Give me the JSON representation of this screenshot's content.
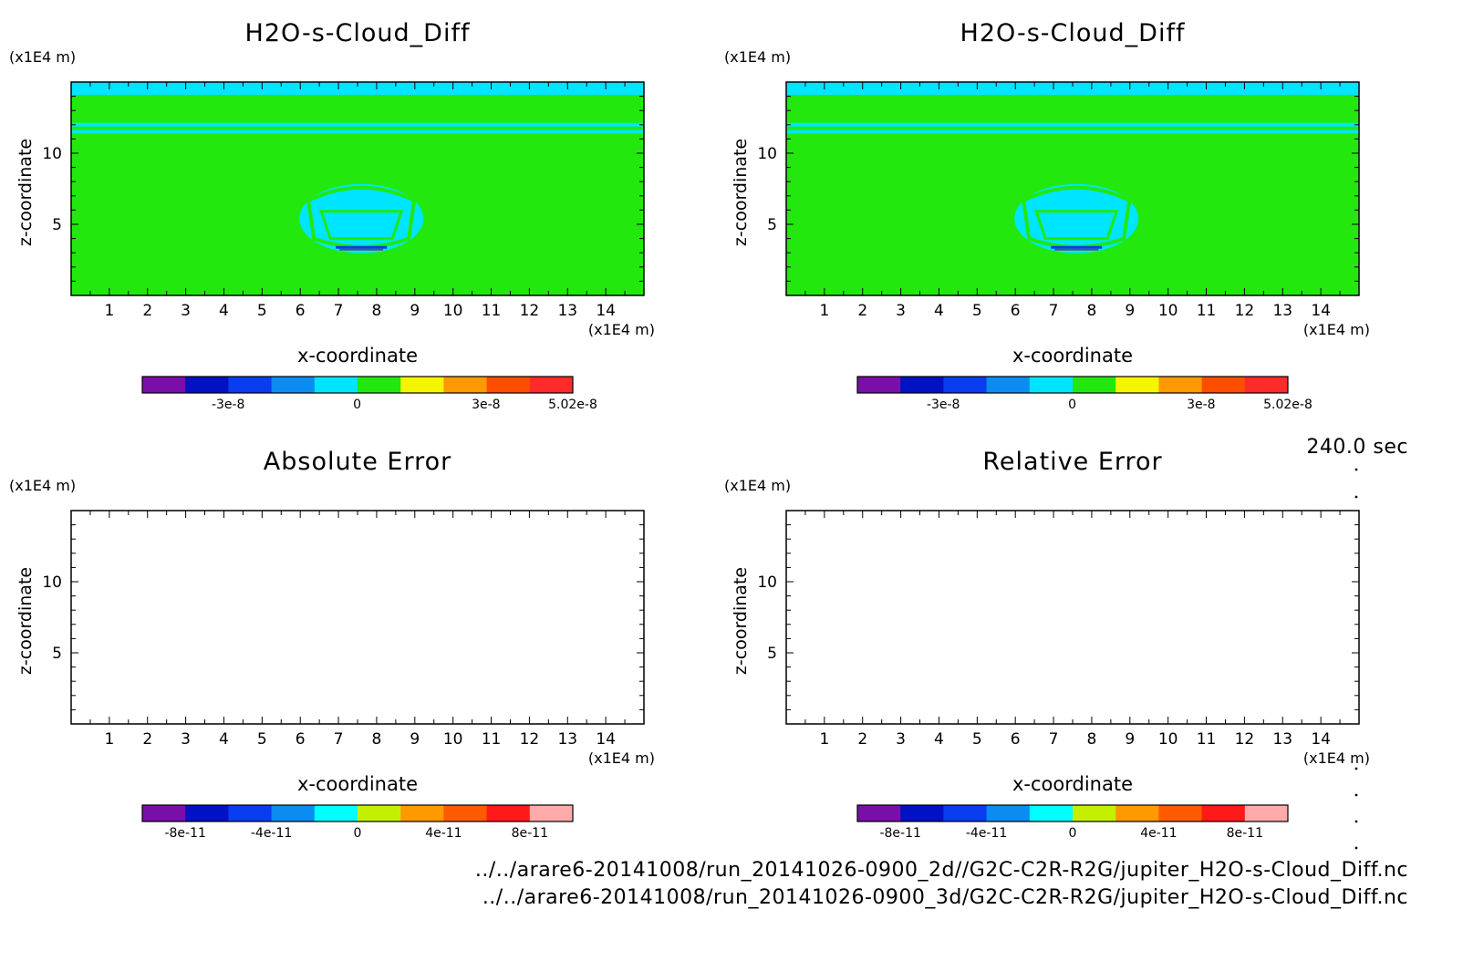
{
  "time_label": "240.0 sec",
  "files": [
    "../../arare6-20141008/run_20141026-0900_2d//G2C-C2R-R2G/jupiter_H2O-s-Cloud_Diff.nc",
    "../../arare6-20141008/run_20141026-0900_3d/G2C-C2R-R2G/jupiter_H2O-s-Cloud_Diff.nc"
  ],
  "chart_data": [
    {
      "type": "heatmap",
      "title": "H2O-s-Cloud_Diff",
      "xlabel": "x-coordinate",
      "ylabel": "z-coordinate",
      "x_unit": "(x1E4 m)",
      "y_unit": "(x1E4 m)",
      "xlim": [
        0,
        15
      ],
      "ylim": [
        0,
        15
      ],
      "xticks": [
        1,
        2,
        3,
        4,
        5,
        6,
        7,
        8,
        9,
        10,
        11,
        12,
        13,
        14
      ],
      "yticks": [
        5,
        10
      ],
      "field": "cloud",
      "colorbar": {
        "colors": [
          "#7a0ea8",
          "#0012c4",
          "#0a3cf0",
          "#0a8cf0",
          "#00e5ff",
          "#22e80e",
          "#f5f500",
          "#ff9900",
          "#ff4d00",
          "#ff2a2a"
        ],
        "ticks": [
          "-3e-8",
          "0",
          "3e-8",
          "5.02e-8"
        ],
        "tick_positions": [
          -3e-08,
          0,
          3e-08,
          5.02e-08
        ],
        "range": [
          -5e-08,
          5.02e-08
        ]
      }
    },
    {
      "type": "heatmap",
      "title": "H2O-s-Cloud_Diff",
      "xlabel": "x-coordinate",
      "ylabel": "z-coordinate",
      "x_unit": "(x1E4 m)",
      "y_unit": "(x1E4 m)",
      "xlim": [
        0,
        15
      ],
      "ylim": [
        0,
        15
      ],
      "xticks": [
        1,
        2,
        3,
        4,
        5,
        6,
        7,
        8,
        9,
        10,
        11,
        12,
        13,
        14
      ],
      "yticks": [
        5,
        10
      ],
      "field": "cloud",
      "colorbar": {
        "colors": [
          "#7a0ea8",
          "#0012c4",
          "#0a3cf0",
          "#0a8cf0",
          "#00e5ff",
          "#22e80e",
          "#f5f500",
          "#ff9900",
          "#ff4d00",
          "#ff2a2a"
        ],
        "ticks": [
          "-3e-8",
          "0",
          "3e-8",
          "5.02e-8"
        ],
        "tick_positions": [
          -3e-08,
          0,
          3e-08,
          5.02e-08
        ],
        "range": [
          -5e-08,
          5.02e-08
        ]
      }
    },
    {
      "type": "heatmap",
      "title": "Absolute Error",
      "xlabel": "x-coordinate",
      "ylabel": "z-coordinate",
      "x_unit": "(x1E4 m)",
      "y_unit": "(x1E4 m)",
      "xlim": [
        0,
        15
      ],
      "ylim": [
        0,
        15
      ],
      "xticks": [
        1,
        2,
        3,
        4,
        5,
        6,
        7,
        8,
        9,
        10,
        11,
        12,
        13,
        14
      ],
      "yticks": [
        5,
        10
      ],
      "field": "empty",
      "colorbar": {
        "colors": [
          "#7a0ea8",
          "#0012c4",
          "#0a3cf0",
          "#0a8cf0",
          "#00ffff",
          "#c4f000",
          "#ff9900",
          "#ff5a00",
          "#ff1a1a",
          "#ffaaaa"
        ],
        "ticks": [
          "-8e-11",
          "-4e-11",
          "0",
          "4e-11",
          "8e-11"
        ],
        "tick_positions": [
          -8e-11,
          -4e-11,
          0,
          4e-11,
          8e-11
        ],
        "range": [
          -1e-10,
          1e-10
        ]
      }
    },
    {
      "type": "heatmap",
      "title": "Relative Error",
      "xlabel": "x-coordinate",
      "ylabel": "z-coordinate",
      "x_unit": "(x1E4 m)",
      "y_unit": "(x1E4 m)",
      "xlim": [
        0,
        15
      ],
      "ylim": [
        0,
        15
      ],
      "xticks": [
        1,
        2,
        3,
        4,
        5,
        6,
        7,
        8,
        9,
        10,
        11,
        12,
        13,
        14
      ],
      "yticks": [
        5,
        10
      ],
      "field": "empty",
      "colorbar": {
        "colors": [
          "#7a0ea8",
          "#0012c4",
          "#0a3cf0",
          "#0a8cf0",
          "#00ffff",
          "#c4f000",
          "#ff9900",
          "#ff5a00",
          "#ff1a1a",
          "#ffaaaa"
        ],
        "ticks": [
          "-8e-11",
          "-4e-11",
          "0",
          "4e-11",
          "8e-11"
        ],
        "tick_positions": [
          -8e-11,
          -4e-11,
          0,
          4e-11,
          8e-11
        ],
        "range": [
          -1e-10,
          1e-10
        ]
      }
    }
  ]
}
